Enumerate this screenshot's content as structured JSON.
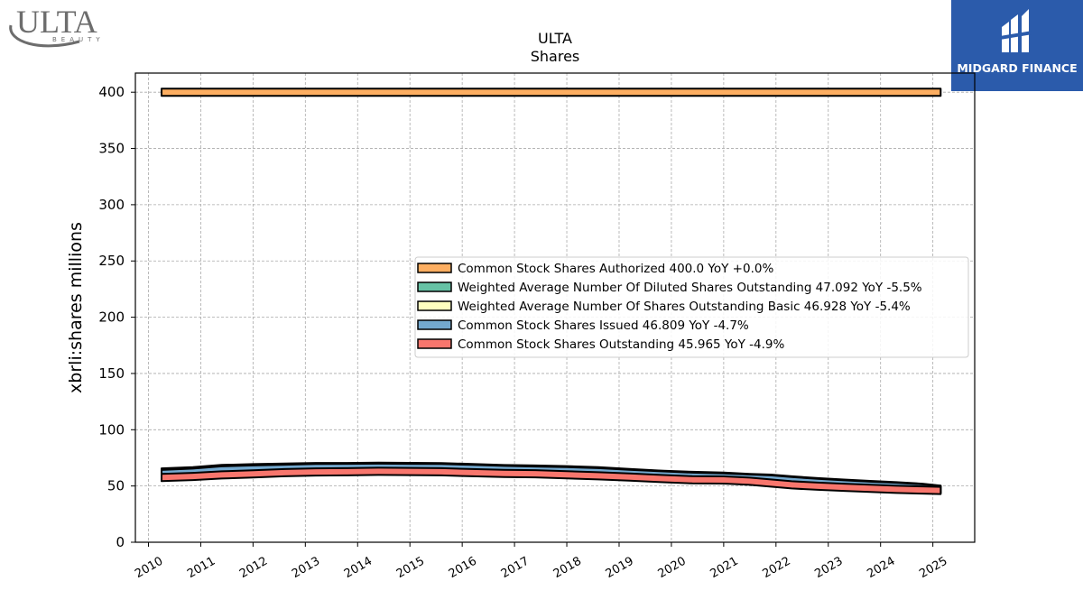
{
  "brand_left": {
    "name": "ULTA",
    "sub": "BEAUTY"
  },
  "brand_right": {
    "name": "MIDGARD FINANCE",
    "bg": "#2b5bab"
  },
  "chart_data": {
    "type": "area",
    "title": "ULTA",
    "subtitle": "Shares",
    "xlabel": "",
    "ylabel": "xbrli:shares millions",
    "xlim": [
      2009.75,
      2025.8
    ],
    "ylim": [
      0,
      417
    ],
    "xticks": [
      "2010",
      "2011",
      "2012",
      "2013",
      "2014",
      "2015",
      "2016",
      "2017",
      "2018",
      "2019",
      "2020",
      "2021",
      "2022",
      "2023",
      "2024",
      "2025"
    ],
    "yticks": [
      "0",
      "50",
      "100",
      "150",
      "200",
      "250",
      "300",
      "350",
      "400"
    ],
    "grid": true,
    "legend_position": "center-right",
    "x": [
      2010.25,
      2010.85,
      2011.4,
      2012.0,
      2012.6,
      2013.2,
      2013.8,
      2014.4,
      2015.0,
      2015.6,
      2016.2,
      2016.8,
      2017.4,
      2018.0,
      2018.6,
      2019.2,
      2019.8,
      2020.4,
      2021.0,
      2021.5,
      2021.9,
      2022.3,
      2022.8,
      2023.3,
      2023.8,
      2024.3,
      2024.8,
      2025.15
    ],
    "series": [
      {
        "name": "Common Stock Shares Authorized  400.0 YoY +0.0%",
        "color": "#fdae61",
        "values": [
          400,
          400,
          400,
          400,
          400,
          400,
          400,
          400,
          400,
          400,
          400,
          400,
          400,
          400,
          400,
          400,
          400,
          400,
          400,
          400,
          400,
          400,
          400,
          400,
          400,
          400,
          400,
          400
        ]
      },
      {
        "name": "Weighted Average Number Of Diluted Shares Outstanding  47.092 YoY -5.5%",
        "color": "#66c2a5",
        "values": [
          62.5,
          63.5,
          65.5,
          66.2,
          66.8,
          67.3,
          67.3,
          67.5,
          67.4,
          67.2,
          66.3,
          65.4,
          65.0,
          64.5,
          63.5,
          62.0,
          60.5,
          59.4,
          58.8,
          57.6,
          56.9,
          55.4,
          53.8,
          52.5,
          51.3,
          50.2,
          48.8,
          47.1
        ]
      },
      {
        "name": "Weighted Average Number Of Shares Outstanding Basic  46.928 YoY -5.4%",
        "color": "#ffffbf",
        "values": [
          61.5,
          62.6,
          64.6,
          65.3,
          66.0,
          66.6,
          66.8,
          66.9,
          66.9,
          66.8,
          65.9,
          65.0,
          64.5,
          64.0,
          63.0,
          61.6,
          60.2,
          59.0,
          58.4,
          57.2,
          56.5,
          55.0,
          53.4,
          52.1,
          50.9,
          49.9,
          48.5,
          46.9
        ]
      },
      {
        "name": "Common Stock Shares Issued  46.809 YoY -4.7%",
        "color": "#74a9cf",
        "values": [
          61.0,
          62.2,
          64.2,
          65.0,
          65.7,
          66.3,
          66.5,
          66.6,
          66.5,
          66.3,
          65.5,
          64.6,
          64.1,
          63.5,
          62.6,
          61.2,
          59.8,
          58.6,
          58.0,
          56.9,
          56.2,
          54.7,
          53.1,
          51.8,
          50.6,
          49.6,
          48.2,
          46.8
        ]
      },
      {
        "name": "Common Stock Shares Outstanding  45.965 YoY -4.9%",
        "color": "#f8766d",
        "values": [
          57.5,
          58.5,
          59.8,
          60.8,
          61.8,
          62.5,
          62.6,
          63.0,
          62.9,
          62.6,
          61.8,
          61.2,
          60.9,
          60.0,
          59.0,
          57.9,
          56.6,
          55.5,
          55.3,
          54.2,
          52.6,
          51.0,
          49.8,
          48.8,
          47.9,
          47.0,
          46.4,
          46.0
        ]
      }
    ]
  }
}
